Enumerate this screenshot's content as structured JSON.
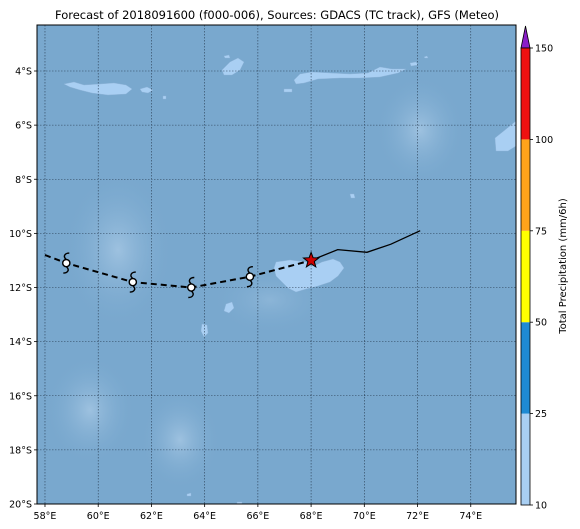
{
  "title": "Forecast of 2018091600 (f000-006), Sources: GDACS (TC track), GFS (Meteo)",
  "map": {
    "lon_range": [
      57.7,
      75.7
    ],
    "lat_range": [
      -20.0,
      -2.3
    ],
    "lon_ticks": [
      58,
      60,
      62,
      64,
      66,
      68,
      70,
      72,
      74
    ],
    "lon_tick_labels": [
      "58°E",
      "60°E",
      "62°E",
      "64°E",
      "66°E",
      "68°E",
      "70°E",
      "72°E",
      "74°E"
    ],
    "lat_ticks": [
      -4,
      -6,
      -8,
      -10,
      -12,
      -14,
      -16,
      -18,
      -20
    ],
    "lat_tick_labels": [
      "4°S",
      "6°S",
      "8°S",
      "10°S",
      "12°S",
      "14°S",
      "16°S",
      "18°S",
      "20°S"
    ],
    "grid": true,
    "colors": {
      "ocean": "#79a8ce",
      "land": "#a9cff3",
      "grid": "#2a3f55"
    }
  },
  "track": {
    "forecast_points": [
      {
        "lon": 58.8,
        "lat": -11.1
      },
      {
        "lon": 61.3,
        "lat": -11.8
      },
      {
        "lon": 63.5,
        "lat": -12.0
      },
      {
        "lon": 65.7,
        "lat": -11.6
      }
    ],
    "forecast_line": [
      {
        "lon": 58.0,
        "lat": -10.8
      },
      {
        "lon": 58.8,
        "lat": -11.1
      },
      {
        "lon": 61.3,
        "lat": -11.8
      },
      {
        "lon": 63.5,
        "lat": -12.0
      },
      {
        "lon": 65.7,
        "lat": -11.6
      },
      {
        "lon": 68.0,
        "lat": -11.0
      }
    ],
    "current_position": {
      "lon": 68.0,
      "lat": -11.0
    },
    "past_track": [
      {
        "lon": 68.0,
        "lat": -11.0
      },
      {
        "lon": 69.0,
        "lat": -10.6
      },
      {
        "lon": 70.1,
        "lat": -10.7
      },
      {
        "lon": 71.0,
        "lat": -10.4
      },
      {
        "lon": 72.1,
        "lat": -9.9
      }
    ],
    "colors": {
      "line": "#000000",
      "star": "#cc0000"
    }
  },
  "colorbar": {
    "label": "Total Precipitation (mm/6h)",
    "tick_labels": [
      "10",
      "25",
      "50",
      "75",
      "100",
      "150"
    ],
    "segments": [
      {
        "from": "10",
        "to": "25",
        "color": "#a9cff3"
      },
      {
        "from": "25",
        "to": "50",
        "color": "#1e8ad3"
      },
      {
        "from": "50",
        "to": "75",
        "color": "#ffff00"
      },
      {
        "from": "75",
        "to": "100",
        "color": "#ffa31a"
      },
      {
        "from": "100",
        "to": "150",
        "color": "#ee1111"
      }
    ],
    "extend_color": "#8a1ec8"
  }
}
